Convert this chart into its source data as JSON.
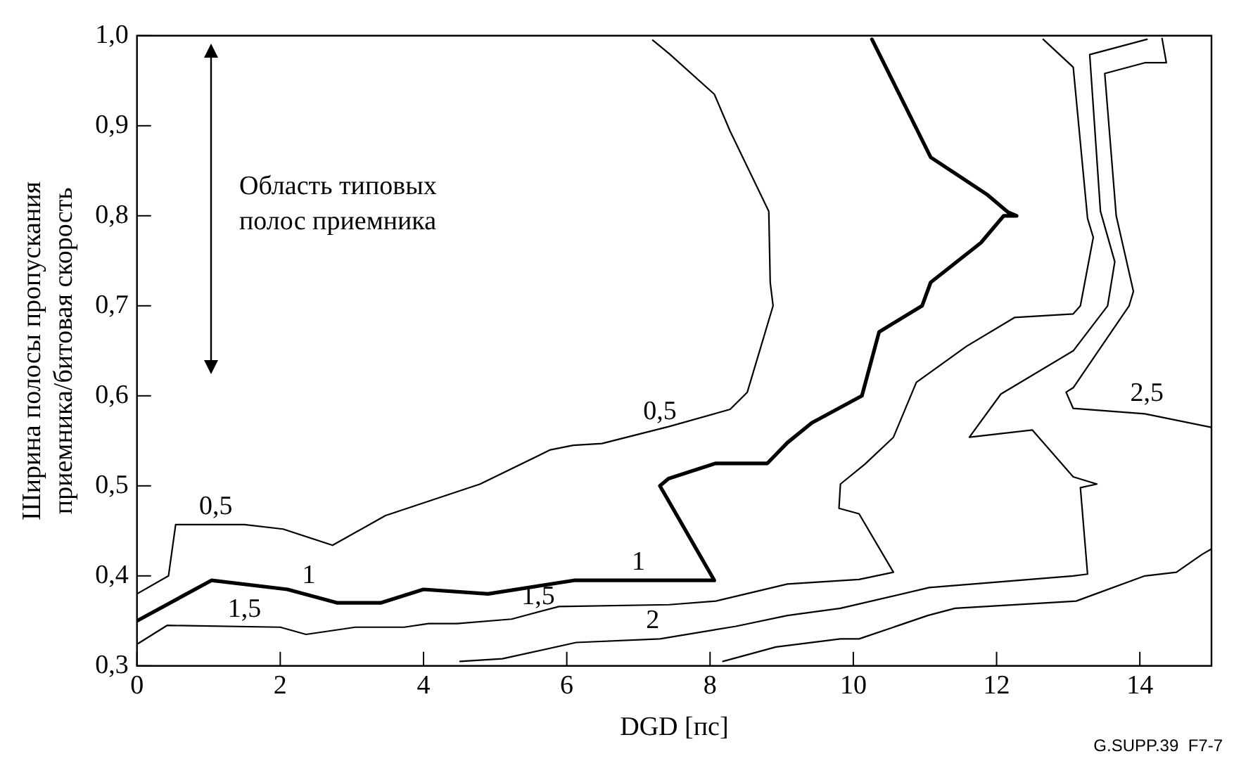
{
  "chart_data": {
    "type": "line",
    "xlabel": "DGD [пс]",
    "ylabel": "Ширина полосы пропускания\nприемника/битовая скорость",
    "xlim": [
      0,
      15
    ],
    "xticks": [
      0,
      2,
      4,
      6,
      8,
      10,
      12,
      14
    ],
    "ylim": [
      0.3,
      1.0
    ],
    "yticks": [
      {
        "value": 0.3,
        "label": "0,3"
      },
      {
        "value": 0.4,
        "label": "0,4"
      },
      {
        "value": 0.5,
        "label": "0,5"
      },
      {
        "value": 0.6,
        "label": "0,6"
      },
      {
        "value": 0.7,
        "label": "0,7"
      },
      {
        "value": 0.8,
        "label": "0,8"
      },
      {
        "value": 0.9,
        "label": "0,9"
      },
      {
        "value": 1.0,
        "label": "1,0"
      }
    ],
    "grid": false,
    "legend": false,
    "marker": "none",
    "line_style": "solid",
    "series": [
      {
        "color": "#000000",
        "x": [
          7.2,
          7.43,
          8.06,
          8.28,
          8.82,
          8.84,
          8.88,
          8.52,
          8.28,
          7.43,
          6.49,
          6.09,
          5.77,
          4.79,
          3.47,
          2.73,
          2.04,
          1.5,
          0.54,
          0.44,
          0
        ],
        "values": [
          0.995,
          0.98,
          0.935,
          0.894,
          0.805,
          0.726,
          0.7,
          0.604,
          0.585,
          0.566,
          0.547,
          0.545,
          0.54,
          0.502,
          0.467,
          0.434,
          0.452,
          0.457,
          0.457,
          0.4,
          0.38
        ]
      },
      {
        "color": "#000000",
        "x": [
          0,
          1.04,
          2.1,
          2.8,
          3.4,
          4.0,
          4.9,
          6.1,
          8.06,
          7.3,
          7.42,
          8.08,
          8.8,
          9.08,
          9.42,
          10.12,
          10.36,
          10.96,
          11.08,
          11.78,
          12.1,
          12.28,
          12.16,
          11.86,
          11.08,
          10.88,
          10.26
        ],
        "values": [
          0.35,
          0.395,
          0.385,
          0.37,
          0.37,
          0.385,
          0.38,
          0.395,
          0.395,
          0.5,
          0.508,
          0.525,
          0.525,
          0.548,
          0.57,
          0.6,
          0.671,
          0.7,
          0.726,
          0.77,
          0.8,
          0.8,
          0.804,
          0.824,
          0.865,
          0.897,
          0.996
        ]
      },
      {
        "color": "#000000",
        "x": [
          0.02,
          0.42,
          2.0,
          2.36,
          3.05,
          3.73,
          4.07,
          4.47,
          5.23,
          5.89,
          7.43,
          8.08,
          9.08,
          10.08,
          10.56,
          10.08,
          9.8,
          9.82,
          10.16,
          10.56,
          10.88,
          11.58,
          12.25,
          13.07,
          13.17,
          13.35,
          13.27,
          13.07,
          12.65
        ],
        "values": [
          0.325,
          0.345,
          0.343,
          0.335,
          0.343,
          0.343,
          0.347,
          0.347,
          0.352,
          0.366,
          0.368,
          0.372,
          0.391,
          0.396,
          0.404,
          0.469,
          0.475,
          0.502,
          0.524,
          0.554,
          0.615,
          0.655,
          0.687,
          0.691,
          0.7,
          0.776,
          0.797,
          0.965,
          0.996
        ]
      },
      {
        "color": "#000000",
        "x": [
          4.51,
          5.1,
          6.13,
          7.3,
          8.36,
          9.08,
          9.82,
          11.06,
          13.07,
          13.27,
          13.17,
          13.4,
          13.07,
          12.5,
          11.62,
          12.06,
          13.07,
          13.55,
          13.65,
          13.45,
          13.3,
          14.1
        ],
        "values": [
          0.305,
          0.308,
          0.326,
          0.33,
          0.344,
          0.356,
          0.364,
          0.387,
          0.4,
          0.402,
          0.498,
          0.502,
          0.51,
          0.562,
          0.554,
          0.602,
          0.65,
          0.7,
          0.749,
          0.805,
          0.979,
          0.996
        ]
      },
      {
        "color": "#000000",
        "x": [
          15,
          14.07,
          13.07,
          12.97,
          13.07,
          13.85,
          13.91,
          13.67,
          13.51,
          14.07,
          14.37,
          14.31,
          null,
          8.18,
          8.92,
          9.82,
          10.08,
          11.04,
          11.42,
          13.11,
          14.07,
          14.51,
          14.87,
          15
        ],
        "values": [
          0.565,
          0.58,
          0.586,
          0.604,
          0.609,
          0.7,
          0.716,
          0.8,
          0.958,
          0.97,
          0.97,
          0.997,
          null,
          0.305,
          0.321,
          0.33,
          0.33,
          0.356,
          0.364,
          0.372,
          0.4,
          0.404,
          0.424,
          0.43
        ]
      }
    ],
    "annotations": [
      {
        "text": "0,5",
        "x": 7.3,
        "y": 0.562
      },
      {
        "text": "0,5",
        "x": 1.1,
        "y": 0.457
      },
      {
        "text": "1",
        "x": 2.4,
        "y": 0.38
      },
      {
        "text": "1",
        "x": 7.0,
        "y": 0.395
      },
      {
        "text": "1,5",
        "x": 1.5,
        "y": 0.343
      },
      {
        "text": "1,5",
        "x": 5.6,
        "y": 0.357
      },
      {
        "text": "2",
        "x": 7.2,
        "y": 0.33
      },
      {
        "text": "2,5",
        "x": 14.1,
        "y": 0.583
      },
      "Область типовых\nполос приемника",
      "G.SUPP.39  F7-7"
    ]
  }
}
